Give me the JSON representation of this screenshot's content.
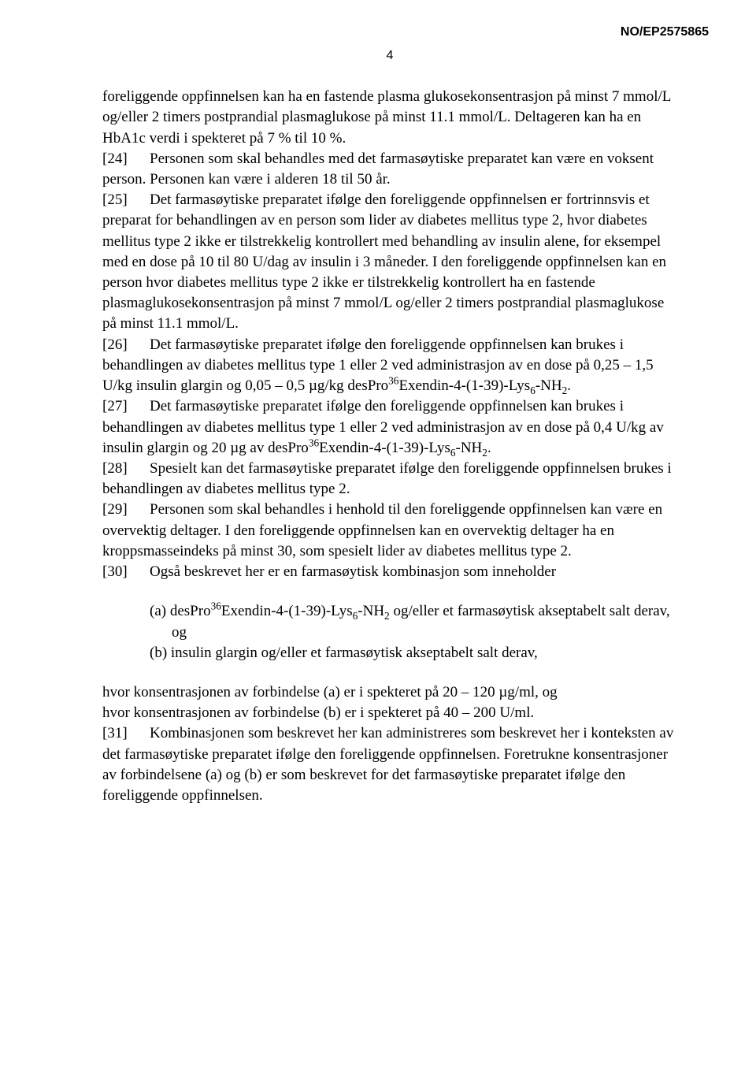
{
  "docId": "NO/EP2575865",
  "pageNumber": "4",
  "paragraphs": {
    "intro": "foreliggende oppfinnelsen kan ha en fastende plasma glukosekonsentrasjon på minst 7 mmol/L og/eller 2 timers postprandial plasmaglukose på minst 11.1 mmol/L. Deltageren kan ha en HbA1c verdi i spekteret på 7 % til 10 %.",
    "p24_tag": "[24]",
    "p24": "Personen som skal behandles med det farmasøytiske preparatet kan være en voksent person. Personen kan være i alderen 18 til 50 år.",
    "p25_tag": "[25]",
    "p25": "Det farmasøytiske preparatet ifølge den foreliggende oppfinnelsen er fortrinnsvis et preparat for behandlingen av en person som lider av diabetes mellitus type 2, hvor diabetes mellitus type 2 ikke er tilstrekkelig kontrollert med behandling av insulin alene, for eksempel med en dose på 10 til 80 U/dag av insulin i 3 måneder. I den foreliggende oppfinnelsen kan en person hvor diabetes mellitus type 2 ikke er tilstrekkelig kontrollert ha en fastende plasmaglukosekonsentrasjon på minst 7 mmol/L og/eller 2 timers postprandial plasmaglukose på minst 11.1 mmol/L.",
    "p26_tag": "[26]",
    "p26_a": "Det farmasøytiske preparatet ifølge den foreliggende oppfinnelsen kan brukes i behandlingen av diabetes mellitus type 1 eller 2 ved administrasjon av en dose på 0,25 – 1,5 U/kg insulin glargin og 0,05 – 0,5 µg/kg desPro",
    "p26_b": "Exendin-4-(1-39)-Lys",
    "p26_c": "-NH",
    "p26_d": ".",
    "p27_tag": "[27]",
    "p27_a": "Det farmasøytiske preparatet ifølge den foreliggende oppfinnelsen kan brukes i behandlingen av diabetes mellitus type 1 eller 2 ved administrasjon av en dose på 0,4 U/kg av insulin glargin og 20 µg av desPro",
    "p27_b": "Exendin-4-(1-39)-Lys",
    "p27_c": "-NH",
    "p27_d": ".",
    "p28_tag": "[28]",
    "p28": "Spesielt kan det farmasøytiske preparatet ifølge den foreliggende oppfinnelsen brukes i behandlingen av diabetes mellitus type 2.",
    "p29_tag": "[29]",
    "p29": "Personen som skal behandles i henhold til den foreliggende oppfinnelsen kan være en overvektig deltager. I den foreliggende oppfinnelsen kan en overvektig deltager ha en kroppsmasseindeks på minst 30, som spesielt lider av diabetes mellitus type 2.",
    "p30_tag": "[30]",
    "p30": "Også beskrevet her er en farmasøytisk kombinasjon som inneholder",
    "sub_a_tag": "(a)",
    "sub_a_1": "desPro",
    "sub_a_2": "Exendin-4-(1-39)-Lys",
    "sub_a_3": "-NH",
    "sub_a_4": " og/eller et farmasøytisk akseptabelt salt derav, og",
    "sub_b_tag": "(b)",
    "sub_b": "insulin glargin og/eller et farmasøytisk akseptabelt salt derav,",
    "conc_a": "hvor konsentrasjonen av forbindelse (a) er i spekteret på 20 – 120 µg/ml, og",
    "conc_b": "hvor konsentrasjonen av forbindelse (b) er i spekteret på 40 – 200 U/ml.",
    "p31_tag": "[31]",
    "p31": "Kombinasjonen som beskrevet her kan administreres som beskrevet her i konteksten av det farmasøytiske preparatet ifølge den foreliggende oppfinnelsen. Foretrukne konsentrasjoner av forbindelsene (a) og (b) er som beskrevet for det farmasøytiske preparatet ifølge den foreliggende oppfinnelsen.",
    "sup36": "36",
    "sub6": "6",
    "sub2": "2"
  }
}
